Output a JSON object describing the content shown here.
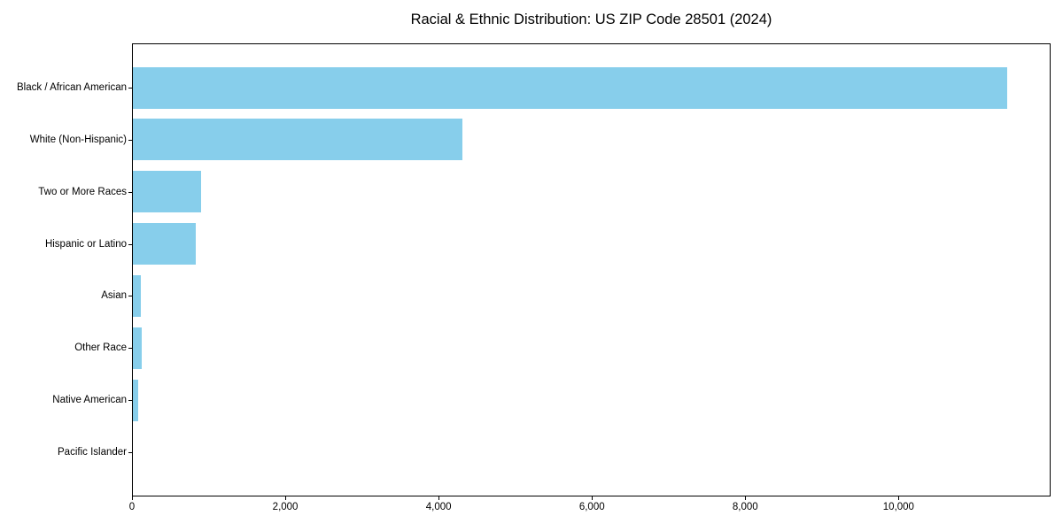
{
  "title": "Racial & Ethnic Distribution: US ZIP Code 28501 (2024)",
  "chart_data": {
    "type": "bar",
    "orientation": "horizontal",
    "title": "Racial & Ethnic Distribution: US ZIP Code 28501 (2024)",
    "categories": [
      "Black / African American",
      "White (Non-Hispanic)",
      "Two or More Races",
      "Hispanic or Latino",
      "Asian",
      "Other Race",
      "Native American",
      "Pacific Islander"
    ],
    "values": [
      11400,
      4300,
      890,
      820,
      100,
      110,
      70,
      0
    ],
    "xlabel": "",
    "ylabel": "",
    "xlim": [
      0,
      11960
    ],
    "xticks": [
      0,
      2000,
      4000,
      6000,
      8000,
      10000
    ],
    "xtick_labels": [
      "0",
      "2,000",
      "4,000",
      "6,000",
      "8,000",
      "10,000"
    ],
    "bar_color": "#87CEEB",
    "spine_color": "#000000",
    "grid": false,
    "legend": null
  }
}
